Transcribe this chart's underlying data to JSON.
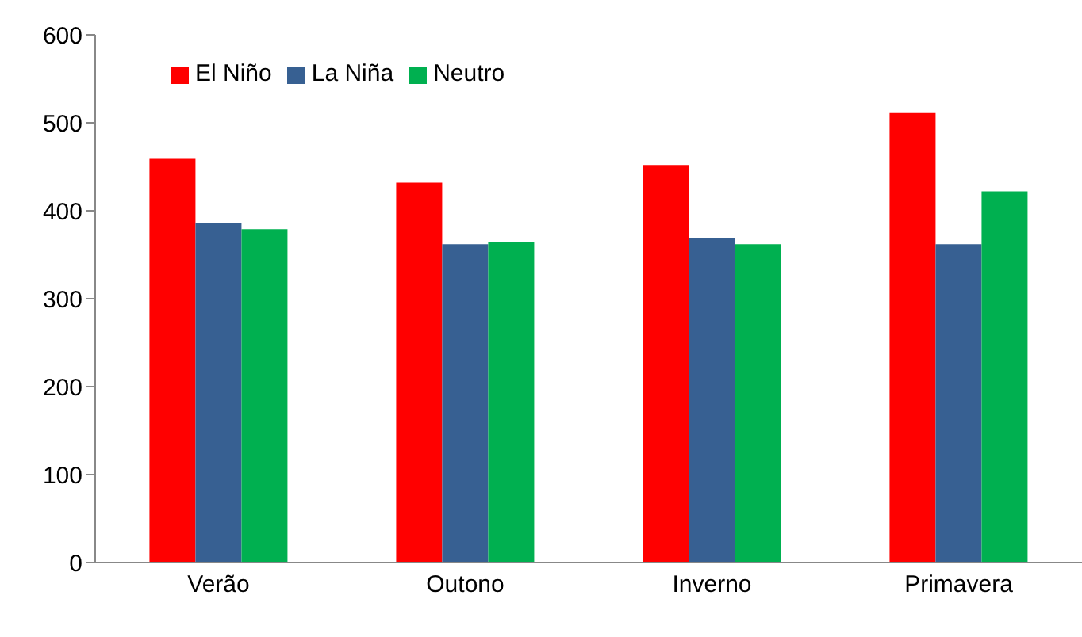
{
  "chart_data": {
    "type": "bar",
    "categories": [
      "Verão",
      "Outono",
      "Inverno",
      "Primavera"
    ],
    "series": [
      {
        "name": "El Niño",
        "color": "#ff0000",
        "values": [
          459,
          432,
          452,
          512
        ]
      },
      {
        "name": "La Niña",
        "color": "#376092",
        "values": [
          386,
          362,
          369,
          362
        ]
      },
      {
        "name": "Neutro",
        "color": "#00b050",
        "values": [
          379,
          364,
          362,
          422
        ]
      }
    ],
    "ylim": [
      0,
      600
    ],
    "yticks": [
      0,
      100,
      200,
      300,
      400,
      500,
      600
    ],
    "grid": false,
    "legend": "top left"
  }
}
